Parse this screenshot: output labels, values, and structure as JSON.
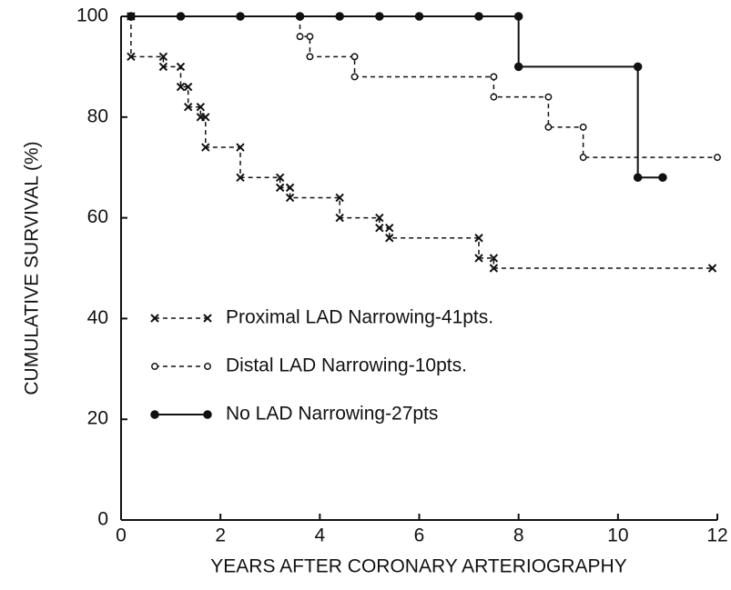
{
  "chart_data": {
    "type": "line",
    "xlabel": "YEARS AFTER CORONARY ARTERIOGRAPHY",
    "ylabel": "CUMULATIVE SURVIVAL (%)",
    "xlim": [
      0,
      12
    ],
    "ylim": [
      0,
      100
    ],
    "xticks": [
      0,
      2,
      4,
      6,
      8,
      10,
      12
    ],
    "yticks": [
      0,
      20,
      40,
      60,
      80,
      100
    ],
    "grid": false,
    "legend": "lower left",
    "series": [
      {
        "name": "Proximal LAD Narrowing-41pts.",
        "color": "#111111",
        "marker": "x",
        "dash": true,
        "x": [
          0.2,
          0.2,
          0.85,
          0.85,
          1.2,
          1.2,
          1.35,
          1.35,
          1.6,
          1.6,
          1.7,
          1.7,
          2.4,
          2.4,
          3.2,
          3.2,
          3.4,
          3.4,
          4.4,
          4.4,
          5.2,
          5.2,
          5.4,
          5.4,
          7.2,
          7.2,
          7.5,
          7.5,
          11.9
        ],
        "values": [
          100,
          92,
          92,
          90,
          90,
          86,
          86,
          82,
          82,
          80,
          80,
          74,
          74,
          68,
          68,
          66,
          66,
          64,
          64,
          60,
          60,
          58,
          58,
          56,
          56,
          52,
          52,
          50,
          50
        ]
      },
      {
        "name": "Distal LAD Narrowing-10pts.",
        "color": "#111111",
        "marker": "o",
        "dash": true,
        "x": [
          3.6,
          3.6,
          3.8,
          3.8,
          4.7,
          4.7,
          7.5,
          7.5,
          8.6,
          8.6,
          9.3,
          9.3,
          12
        ],
        "values": [
          100,
          96,
          96,
          92,
          92,
          88,
          88,
          84,
          84,
          78,
          78,
          72,
          72
        ]
      },
      {
        "name": "No LAD Narrowing-27pts",
        "color": "#111111",
        "marker": "filled",
        "dash": false,
        "x": [
          0.2,
          1.2,
          2.4,
          3.6,
          4.4,
          5.2,
          6,
          7.2,
          8,
          8,
          10.4,
          10.4,
          10.9
        ],
        "values": [
          100,
          100,
          100,
          100,
          100,
          100,
          100,
          100,
          100,
          90,
          90,
          68,
          68
        ]
      }
    ]
  }
}
